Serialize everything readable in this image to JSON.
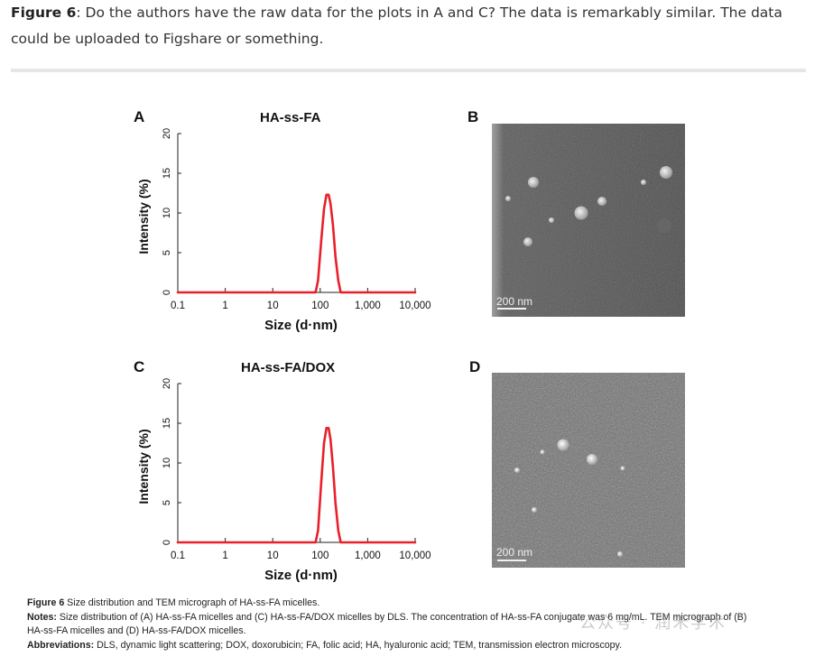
{
  "comment": {
    "label": "Figure 6",
    "text": ": Do the authors have the raw data for the plots in A and C? The data is remarkably similar. The data could be uploaded to Figshare or something."
  },
  "panels": {
    "a": {
      "letter": "A",
      "title": "HA-ss-FA"
    },
    "b": {
      "letter": "B",
      "scalebar": "200 nm"
    },
    "c": {
      "letter": "C",
      "title": "HA-ss-FA/DOX"
    },
    "d": {
      "letter": "D",
      "scalebar": "200 nm"
    }
  },
  "chart_data": [
    {
      "type": "line",
      "title": "HA-ss-FA",
      "xlabel": "Size (d·nm)",
      "ylabel": "Intensity (%)",
      "xscale": "log",
      "xlim": [
        0.1,
        10000
      ],
      "ylim": [
        0,
        20
      ],
      "xticks": [
        0.1,
        1,
        10,
        100,
        1000,
        10000
      ],
      "xtick_labels": [
        "0.1",
        "1",
        "10",
        "100",
        "1,000",
        "10,000"
      ],
      "yticks": [
        0,
        5,
        10,
        15,
        20
      ],
      "ytick_labels": [
        "0",
        "5",
        "10",
        "15",
        "20"
      ],
      "color": "#e8202a",
      "series": [
        {
          "x": [
            0.1,
            80,
            90,
            105,
            120,
            135,
            150,
            165,
            185,
            210,
            240,
            270,
            10000
          ],
          "y": [
            0,
            0,
            1.5,
            6.5,
            10.5,
            12.3,
            12.3,
            11.2,
            8.5,
            4.5,
            1.5,
            0,
            0
          ]
        }
      ]
    },
    {
      "type": "line",
      "title": "HA-ss-FA/DOX",
      "xlabel": "Size (d·nm)",
      "ylabel": "Intensity (%)",
      "xscale": "log",
      "xlim": [
        0.1,
        10000
      ],
      "ylim": [
        0,
        20
      ],
      "xticks": [
        0.1,
        1,
        10,
        100,
        1000,
        10000
      ],
      "xtick_labels": [
        "0.1",
        "1",
        "10",
        "100",
        "1,000",
        "10,000"
      ],
      "yticks": [
        0,
        5,
        10,
        15,
        20
      ],
      "ytick_labels": [
        "0",
        "5",
        "10",
        "15",
        "20"
      ],
      "color": "#e8202a",
      "series": [
        {
          "x": [
            0.1,
            80,
            90,
            105,
            120,
            135,
            150,
            165,
            185,
            210,
            240,
            270,
            10000
          ],
          "y": [
            0,
            0,
            1.5,
            7.5,
            12.5,
            14.4,
            14.4,
            13,
            9.5,
            5,
            1.5,
            0,
            0
          ]
        }
      ]
    }
  ],
  "caption": {
    "title_label": "Figure 6",
    "title_text": " Size distribution and TEM micrograph of HA-ss-FA micelles.",
    "notes_label": "Notes:",
    "notes_line1": " Size distribution of (A) HA-ss-FA micelles and (C) HA-ss-FA/DOX micelles by DLS. The concentration of HA-ss-FA conjugate was 6 mg/mL. TEM micrograph of (B)",
    "notes_line2": "HA-ss-FA micelles and (D) HA-ss-FA/DOX micelles.",
    "abbrev_label": "Abbreviations:",
    "abbrev_text": " DLS, dynamic light scattering; DOX, doxorubicin; FA, folic acid; HA, hyaluronic acid; TEM, transmission electron microscopy."
  },
  "watermark": "公众号 · 润禾学术"
}
